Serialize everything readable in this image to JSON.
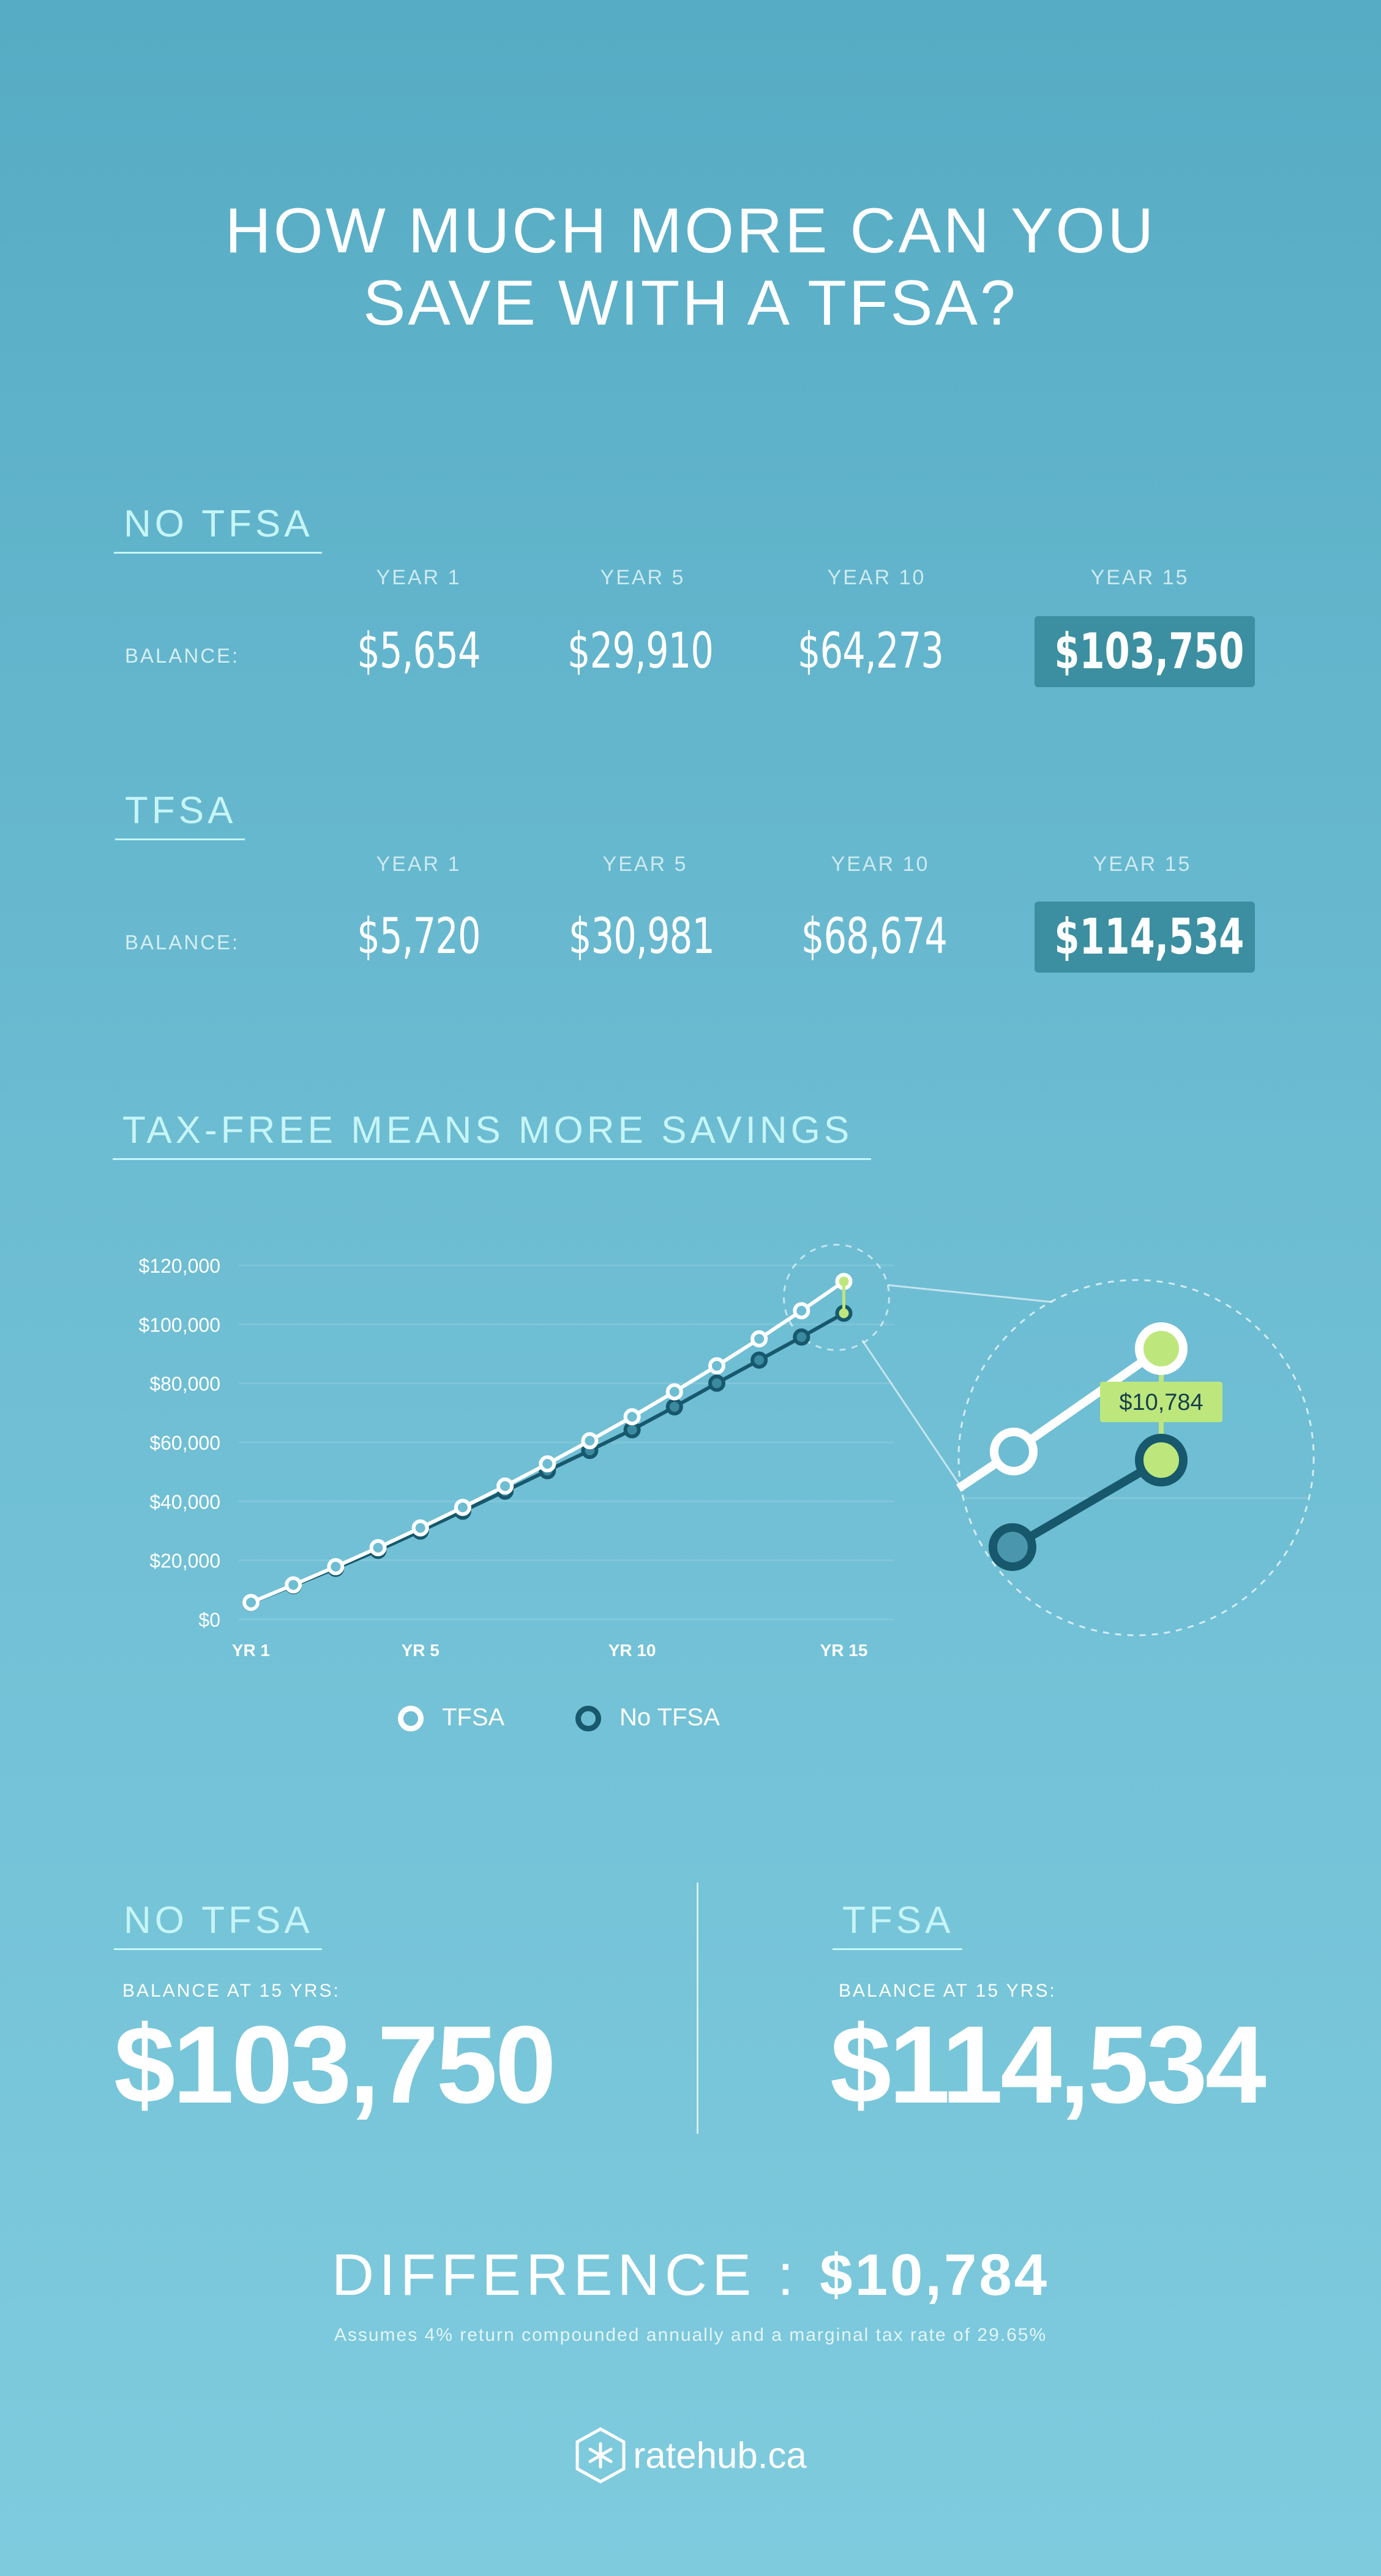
{
  "title_line1": "HOW MUCH MORE CAN YOU",
  "title_line2": "SAVE WITH A TFSA?",
  "no_tfsa": {
    "heading": "NO TFSA",
    "balance_label": "BALANCE:",
    "columns": [
      "YEAR 1",
      "YEAR 5",
      "YEAR 10",
      "YEAR 15"
    ],
    "values": [
      "$5,654",
      "$29,910",
      "$64,273",
      "$103,750"
    ]
  },
  "tfsa": {
    "heading": "TFSA",
    "balance_label": "BALANCE:",
    "columns": [
      "YEAR 1",
      "YEAR 5",
      "YEAR 10",
      "YEAR 15"
    ],
    "values": [
      "$5,720",
      "$30,981",
      "$68,674",
      "$114,534"
    ]
  },
  "chart_heading": "TAX-FREE MEANS MORE SAVINGS",
  "chart_data": {
    "type": "line",
    "x": [
      1,
      2,
      3,
      4,
      5,
      6,
      7,
      8,
      9,
      10,
      11,
      12,
      13,
      14,
      15
    ],
    "x_tick_labels": [
      "YR 1",
      "YR 5",
      "YR 10",
      "YR 15"
    ],
    "x_tick_values": [
      1,
      5,
      10,
      15
    ],
    "y_tick_labels": [
      "$0",
      "$20,000",
      "$40,000",
      "$60,000",
      "$80,000",
      "$100,000",
      "$120,000"
    ],
    "ylim": [
      0,
      120000
    ],
    "grid": true,
    "legend_position": "bottom",
    "series": [
      {
        "name": "TFSA",
        "color": "#ffffff",
        "values": [
          5720,
          11670,
          17850,
          24290,
          30981,
          37940,
          45180,
          52710,
          60540,
          68674,
          77140,
          85940,
          95090,
          104610,
          114534
        ]
      },
      {
        "name": "No TFSA",
        "color": "#17586c",
        "values": [
          5654,
          11420,
          17300,
          23390,
          29910,
          36640,
          43460,
          50390,
          57250,
          64273,
          72030,
          80050,
          87880,
          95700,
          103750
        ]
      }
    ],
    "callout": "$10,784",
    "callout_color": "#bde77d"
  },
  "summary": {
    "no_tfsa_heading": "NO TFSA",
    "no_tfsa_label": "BALANCE AT 15 YRS:",
    "no_tfsa_value": "$103,750",
    "tfsa_heading": "TFSA",
    "tfsa_label": "BALANCE AT 15 YRS:",
    "tfsa_value": "$114,534"
  },
  "difference_label": "DIFFERENCE :",
  "difference_value": "$10,784",
  "footnote": "Assumes 4% return compounded annually and a marginal tax rate of 29.65%",
  "brand": "ratehub.ca",
  "logo_icon": "hexagon-asterisk-icon",
  "colors": {
    "highlight_box": "#3b8fa0",
    "accent_green": "#bde77d",
    "dark_series": "#17586c"
  }
}
